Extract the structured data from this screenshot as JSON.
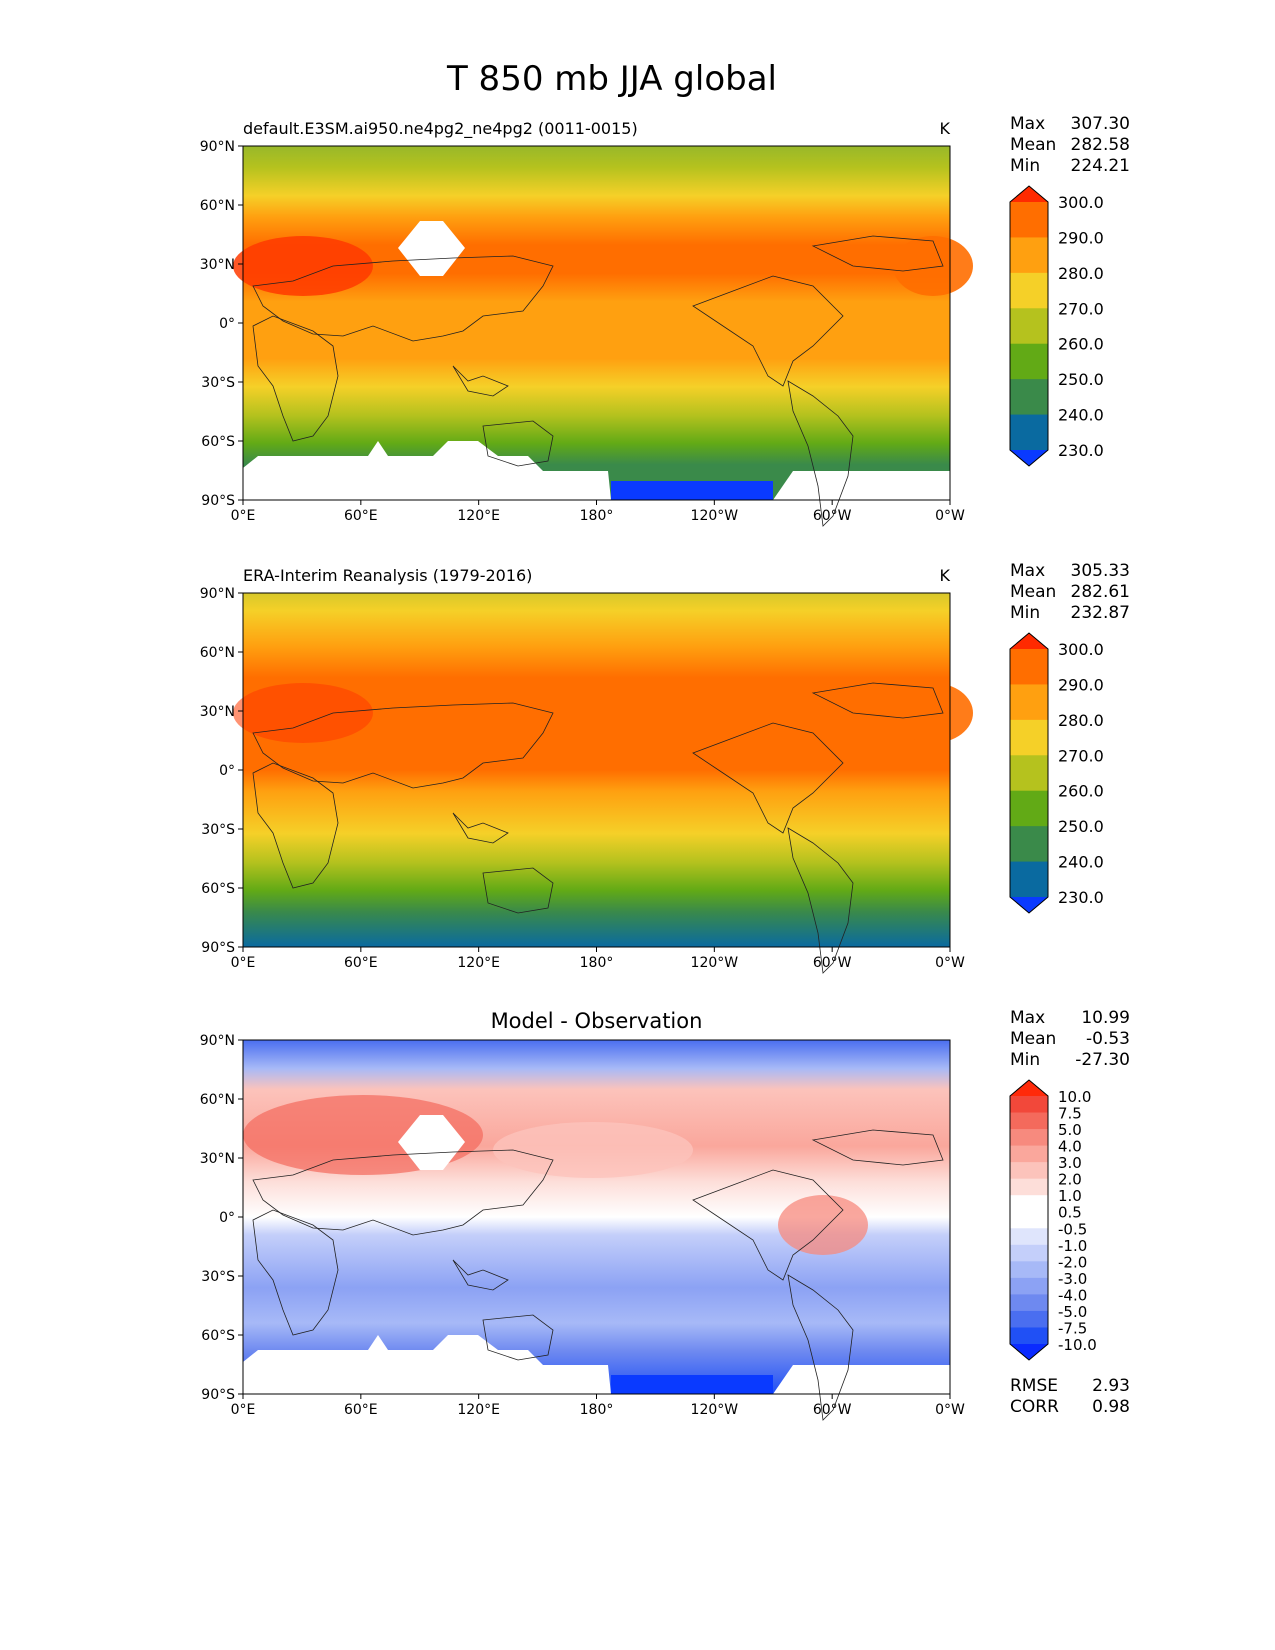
{
  "title": "T 850 mb JJA global",
  "lat_labels": [
    "90°N",
    "60°N",
    "30°N",
    "0°",
    "30°S",
    "60°S",
    "90°S"
  ],
  "lon_labels": [
    "0°E",
    "60°E",
    "120°E",
    "180°",
    "120°W",
    "60°W",
    "0°W"
  ],
  "stat_labels": {
    "max": "Max",
    "mean": "Mean",
    "min": "Min",
    "rmse": "RMSE",
    "corr": "CORR"
  },
  "panels": [
    {
      "id": "model",
      "title_left": "default.E3SM.ai950.ne4pg2_ne4pg2 (0011-0015)",
      "title_center": "",
      "units": "K",
      "stats": {
        "max": "307.30",
        "mean": "282.58",
        "min": "224.21"
      },
      "colorbar_type": "abs"
    },
    {
      "id": "obs",
      "title_left": "ERA-Interim Reanalysis (1979-2016)",
      "title_center": "",
      "units": "K",
      "stats": {
        "max": "305.33",
        "mean": "282.61",
        "min": "232.87"
      },
      "colorbar_type": "abs"
    },
    {
      "id": "diff",
      "title_left": "",
      "title_center": "Model - Observation",
      "units": "",
      "stats": {
        "max": "10.99",
        "mean": "-0.53",
        "min": "-27.30"
      },
      "colorbar_type": "diff",
      "rmse": "2.93",
      "corr": "0.98"
    }
  ],
  "colorbars": {
    "abs": {
      "ticks": [
        "300.0",
        "290.0",
        "280.0",
        "270.0",
        "260.0",
        "250.0",
        "240.0",
        "230.0"
      ],
      "colors": [
        "#ff2a00",
        "#ff6e00",
        "#ffa010",
        "#f5d028",
        "#b5c21e",
        "#62aa16",
        "#3a8a4a",
        "#0a6aa0",
        "#0a3aff"
      ]
    },
    "diff": {
      "ticks": [
        "10.0",
        "7.5",
        "5.0",
        "4.0",
        "3.0",
        "2.0",
        "1.0",
        "0.5",
        "-0.5",
        "-1.0",
        "-2.0",
        "-3.0",
        "-4.0",
        "-5.0",
        "-7.5",
        "-10.0"
      ],
      "colors": [
        "#ff2a0a",
        "#f2483a",
        "#f46a5c",
        "#f78a7e",
        "#faa79c",
        "#fcc3bb",
        "#fdded9",
        "#ffffff",
        "#ffffff",
        "#dfe5fc",
        "#c4cffa",
        "#a7b9f7",
        "#8ca2f4",
        "#6e89f0",
        "#4a6ef0",
        "#2050f5",
        "#0a2aff"
      ]
    }
  }
}
